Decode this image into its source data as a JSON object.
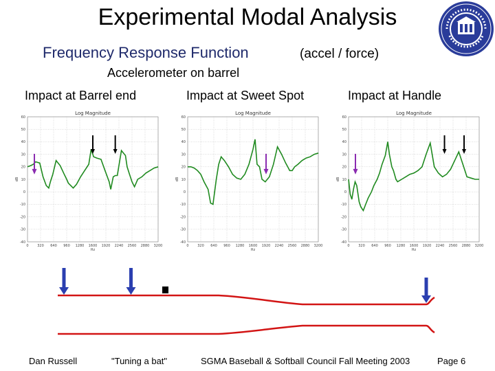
{
  "slide": {
    "title": "Experimental Modal Analysis",
    "frf": {
      "f1": "F",
      "r1": "requency ",
      "f2": "R",
      "r2": "esponse ",
      "f3": "F",
      "r3": "unction"
    },
    "units": "(accel / force)",
    "sensor": "Accelerometer on barrel",
    "captions": [
      "Impact at Barrel end",
      "Impact at Sweet Spot",
      "Impact at Handle"
    ],
    "seal_text": "KETTERING UNIVERSITY",
    "footer": {
      "author": "Dan Russell",
      "topic": "\"Tuning a bat\"",
      "event": "SGMA Baseball & Softball Council Fall Meeting 2003",
      "page": "Page 6"
    },
    "colors": {
      "curve": "#1f8a1f",
      "bat": "#d21414",
      "impact_arrow": "#2b3fb0",
      "node_arrow": "#000000",
      "mode_arrow": "#8a2bb0"
    }
  },
  "chart_data": [
    {
      "type": "line",
      "title": "Log Magnitude",
      "ylabel": "dB",
      "xlabel": "Hz",
      "ylim": [
        -40,
        60
      ],
      "yticks": [
        "60",
        "50",
        "40",
        "30",
        "20",
        "10",
        "0",
        "-10",
        "-20",
        "-30",
        "-40"
      ],
      "xticks": [
        "0",
        "320",
        "640",
        "960",
        "1280",
        "1600",
        "1920",
        "2240",
        "2560",
        "2880",
        "3200"
      ],
      "xlim": [
        0,
        3200
      ],
      "series": [
        {
          "x": [
            0,
            80,
            140,
            200,
            300,
            380,
            460,
            520,
            560,
            620,
            700,
            800,
            900,
            960,
            1000,
            1060,
            1120,
            1200,
            1300,
            1400,
            1500,
            1560,
            1620,
            1700,
            1800,
            1900,
            2000,
            2040,
            2100,
            2150,
            2200,
            2300,
            2400,
            2440,
            2500,
            2560,
            2620,
            2700,
            2800,
            2900,
            3000,
            3100,
            3200
          ],
          "y": [
            20,
            21,
            22,
            24,
            23,
            12,
            5,
            3,
            8,
            14,
            25,
            21,
            14,
            10,
            7,
            5,
            3,
            6,
            12,
            17,
            22,
            34,
            28,
            27,
            26,
            17,
            8,
            2,
            12,
            13,
            13,
            33,
            29,
            20,
            14,
            8,
            4,
            10,
            12,
            15,
            17,
            19,
            20
          ]
        }
      ],
      "impact_arrow_x": 0,
      "node_arrows_x": [
        1600,
        2150
      ]
    },
    {
      "type": "line",
      "title": "Log Magnitude",
      "ylabel": "dB",
      "xlabel": "Hz",
      "ylim": [
        -40,
        60
      ],
      "yticks": [
        "60",
        "50",
        "40",
        "30",
        "20",
        "10",
        "0",
        "-10",
        "-20",
        "-30",
        "-40"
      ],
      "xticks": [
        "0",
        "320",
        "640",
        "960",
        "1280",
        "1600",
        "1920",
        "2240",
        "2560",
        "2880",
        "3200"
      ],
      "xlim": [
        0,
        3200
      ],
      "series": [
        {
          "x": [
            0,
            80,
            160,
            240,
            320,
            400,
            500,
            560,
            620,
            700,
            760,
            820,
            900,
            1000,
            1100,
            1200,
            1300,
            1400,
            1500,
            1600,
            1650,
            1700,
            1760,
            1820,
            1900,
            2000,
            2100,
            2200,
            2300,
            2400,
            2450,
            2500,
            2560,
            2620,
            2700,
            2800,
            2900,
            3000,
            3100,
            3200
          ],
          "y": [
            20,
            20,
            19,
            17,
            14,
            8,
            2,
            -9,
            -10,
            10,
            22,
            28,
            25,
            20,
            14,
            11,
            10,
            14,
            22,
            34,
            42,
            22,
            20,
            10,
            8,
            12,
            22,
            36,
            30,
            23,
            20,
            17,
            17,
            20,
            22,
            25,
            27,
            28,
            30,
            31
          ]
        }
      ],
      "impact_arrow_x": 1920,
      "node_arrows_x": []
    },
    {
      "type": "line",
      "title": "Log Magnitude",
      "ylabel": "dB",
      "xlabel": "Hz",
      "ylim": [
        -40,
        60
      ],
      "yticks": [
        "60",
        "50",
        "40",
        "30",
        "20",
        "10",
        "0",
        "-10",
        "-20",
        "-30",
        "-40"
      ],
      "xticks": [
        "0",
        "320",
        "640",
        "960",
        "1280",
        "1600",
        "1920",
        "2240",
        "2560",
        "2880",
        "3200"
      ],
      "xlim": [
        0,
        3200
      ],
      "series": [
        {
          "x": [
            0,
            40,
            80,
            120,
            160,
            200,
            260,
            300,
            360,
            420,
            480,
            560,
            620,
            700,
            760,
            820,
            900,
            960,
            1000,
            1060,
            1100,
            1160,
            1200,
            1300,
            1400,
            1500,
            1600,
            1700,
            1800,
            1900,
            2000,
            2100,
            2200,
            2300,
            2400,
            2500,
            2600,
            2700,
            2800,
            2900,
            3000,
            3100,
            3200
          ],
          "y": [
            10,
            -2,
            -6,
            2,
            8,
            5,
            -8,
            -12,
            -15,
            -10,
            -5,
            0,
            5,
            10,
            15,
            22,
            29,
            40,
            30,
            20,
            17,
            10,
            8,
            10,
            12,
            14,
            15,
            17,
            20,
            30,
            39,
            20,
            15,
            12,
            14,
            18,
            25,
            32,
            22,
            12,
            11,
            10,
            10
          ]
        }
      ],
      "impact_arrow_x": 0,
      "node_arrows_x": [
        2350,
        2830
      ]
    }
  ]
}
